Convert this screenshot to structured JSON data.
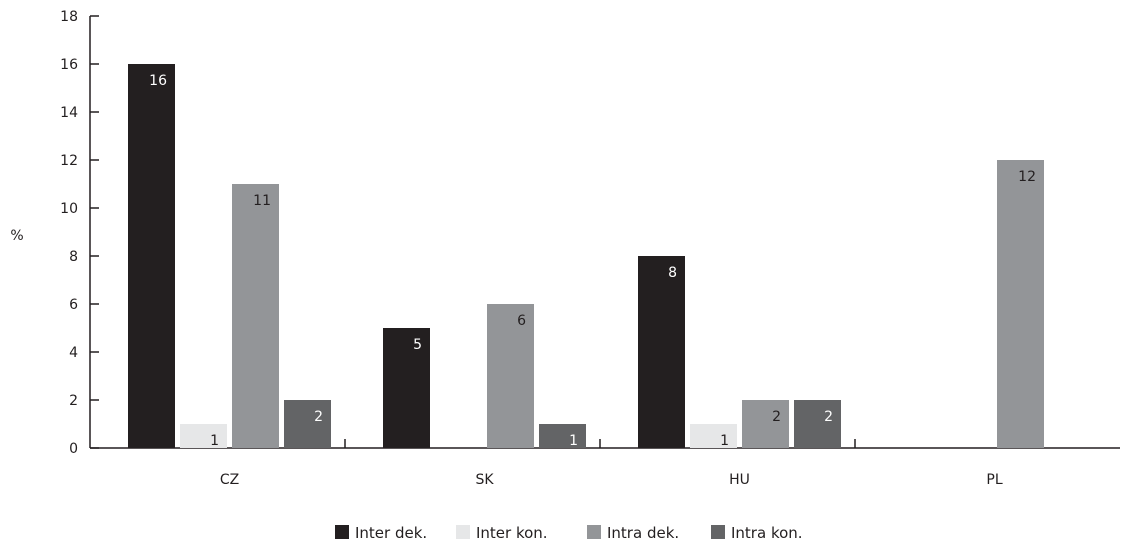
{
  "chart_data": {
    "type": "bar",
    "title": "",
    "xlabel": "",
    "ylabel": "%",
    "ylim": [
      0,
      18
    ],
    "yticks": [
      0,
      2,
      4,
      6,
      8,
      10,
      12,
      14,
      16,
      18
    ],
    "categories": [
      "CZ",
      "SK",
      "HU",
      "PL"
    ],
    "series": [
      {
        "name": "Inter dek.",
        "color": "#231f20",
        "label_color": "#ffffff",
        "values": [
          16,
          5,
          8,
          null
        ]
      },
      {
        "name": "Inter kon.",
        "color": "#e6e7e8",
        "label_color": "#231f20",
        "values": [
          1,
          null,
          1,
          null
        ]
      },
      {
        "name": "Intra dek.",
        "color": "#939598",
        "label_color": "#231f20",
        "values": [
          11,
          6,
          2,
          12
        ]
      },
      {
        "name": "Intra kon.",
        "color": "#636466",
        "label_color": "#ffffff",
        "values": [
          2,
          1,
          2,
          null
        ]
      }
    ],
    "legend_position": "bottom-center",
    "grid": false
  }
}
